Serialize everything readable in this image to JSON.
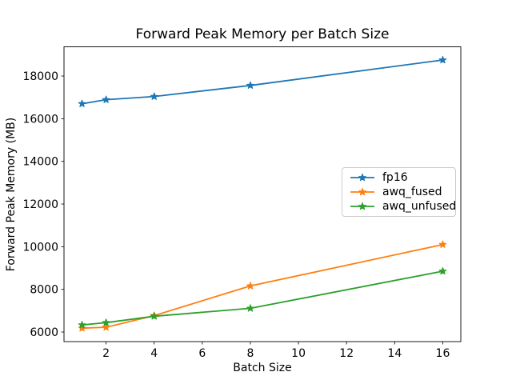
{
  "chart_data": {
    "type": "line",
    "title": "Forward Peak Memory per Batch Size",
    "xlabel": "Batch Size",
    "ylabel": "Forward Peak Memory (MB)",
    "x": [
      1,
      2,
      4,
      8,
      16
    ],
    "series": [
      {
        "name": "fp16",
        "color": "#1f77b4",
        "marker": "star",
        "values": [
          16700,
          16890,
          17040,
          17560,
          18750
        ]
      },
      {
        "name": "awq_fused",
        "color": "#ff7f0e",
        "marker": "star",
        "values": [
          6180,
          6220,
          6770,
          8160,
          10100
        ]
      },
      {
        "name": "awq_unfused",
        "color": "#2ca02c",
        "marker": "star",
        "values": [
          6330,
          6440,
          6740,
          7110,
          8850
        ]
      }
    ],
    "xlim": [
      0.25,
      16.75
    ],
    "ylim": [
      5550,
      19370
    ],
    "xticks": [
      2,
      4,
      6,
      8,
      10,
      12,
      14,
      16
    ],
    "yticks": [
      6000,
      8000,
      10000,
      12000,
      14000,
      16000,
      18000
    ],
    "grid": false,
    "legend": {
      "position": "center right",
      "border_color": "#cccccc",
      "background": "#ffffff"
    },
    "axis_color": "#000000",
    "text_color": "#000000"
  }
}
